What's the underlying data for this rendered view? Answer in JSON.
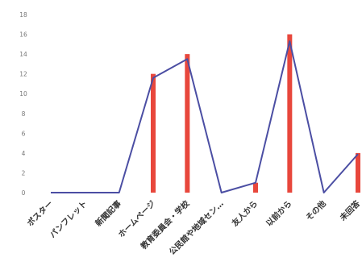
{
  "chart_data": {
    "type": "bar",
    "categories": [
      "ポスター",
      "パンフレット",
      "新聞記事",
      "ホームページ",
      "教育委員会・学校",
      "公民館や地域セン…",
      "友人から",
      "以前から",
      "その他",
      "未回答"
    ],
    "series": [
      {
        "type": "bar",
        "values": [
          0,
          0,
          0,
          12,
          14,
          0,
          1,
          16,
          0,
          4
        ]
      },
      {
        "type": "line",
        "values": [
          0,
          0,
          0,
          11.6,
          13.5,
          0,
          1,
          15.3,
          0,
          3.9
        ]
      }
    ],
    "title": "",
    "xlabel": "",
    "ylabel": "",
    "ylim": [
      0,
      18
    ],
    "yticks": [
      "0",
      "2",
      "4",
      "6",
      "8",
      "10",
      "12",
      "14",
      "16",
      "18"
    ],
    "grid": false,
    "legend": "none",
    "colors": {
      "bar": "#e8473c",
      "line": "#4b4ea3"
    }
  }
}
